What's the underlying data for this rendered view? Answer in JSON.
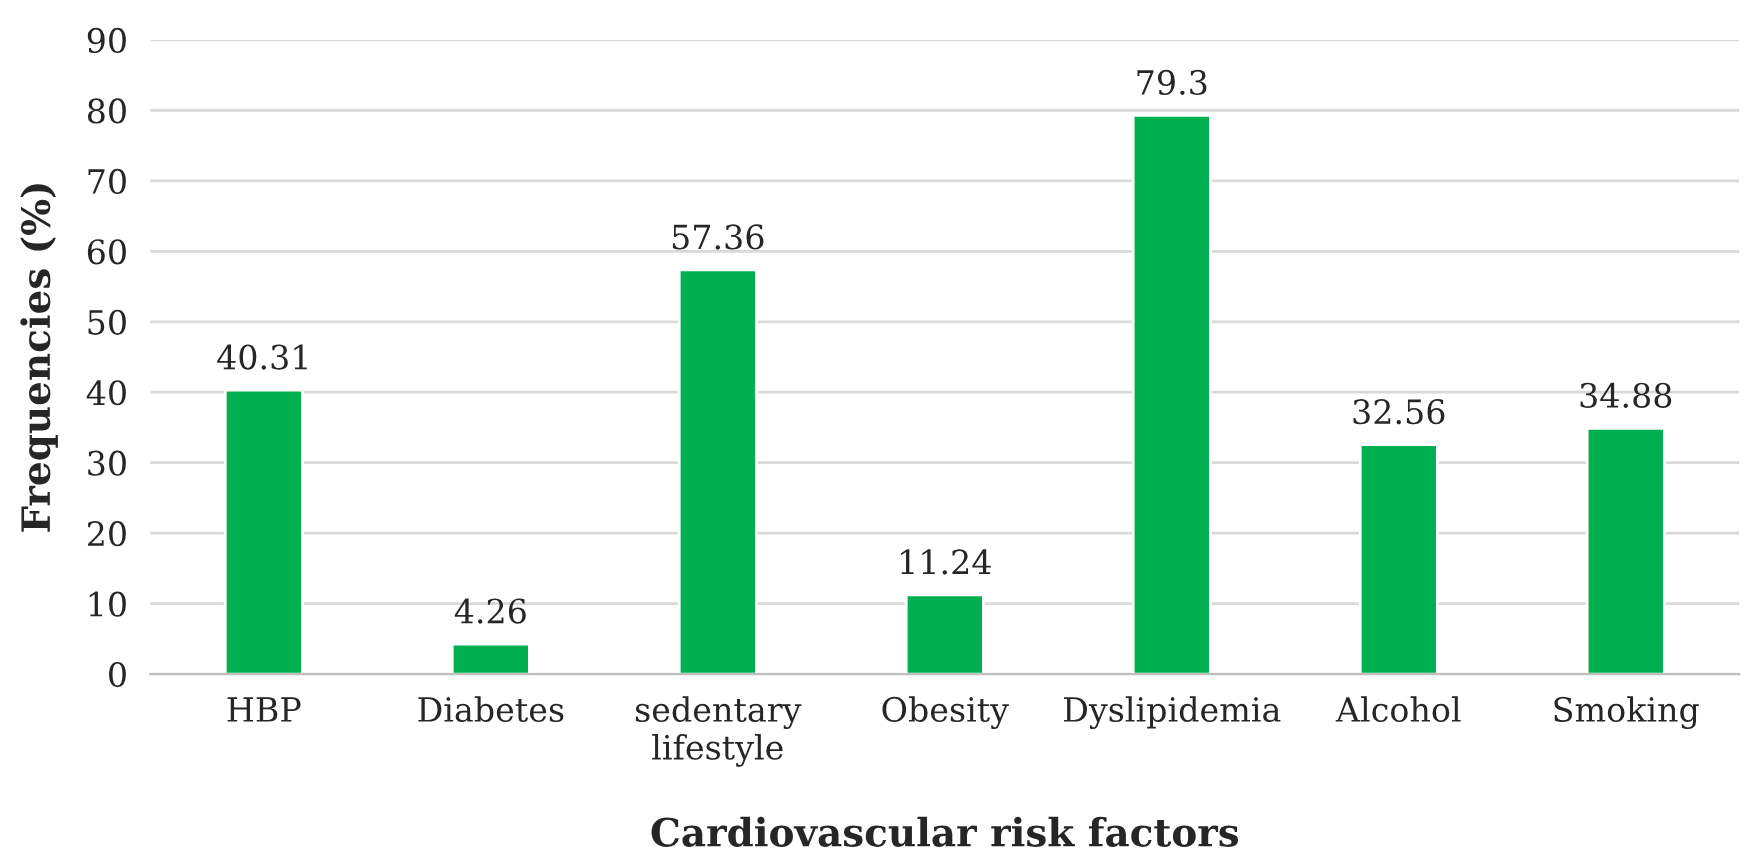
{
  "chart_data": {
    "type": "bar",
    "xlabel": "Cardiovascular risk factors",
    "ylabel": "Frequencies (%)",
    "categories": [
      "HBP",
      "Diabetes",
      "sedentary\nlifestyle",
      "Obesity",
      "Dyslipidemia",
      "Alcohol",
      "Smoking"
    ],
    "values": [
      40.31,
      4.26,
      57.36,
      11.24,
      79.3,
      32.56,
      34.88
    ],
    "color": "#00b050",
    "ylim": [
      0,
      90
    ],
    "yticks": [
      0,
      10,
      20,
      30,
      40,
      50,
      60,
      70,
      80,
      90
    ],
    "grid": "y",
    "data_labels": true
  }
}
